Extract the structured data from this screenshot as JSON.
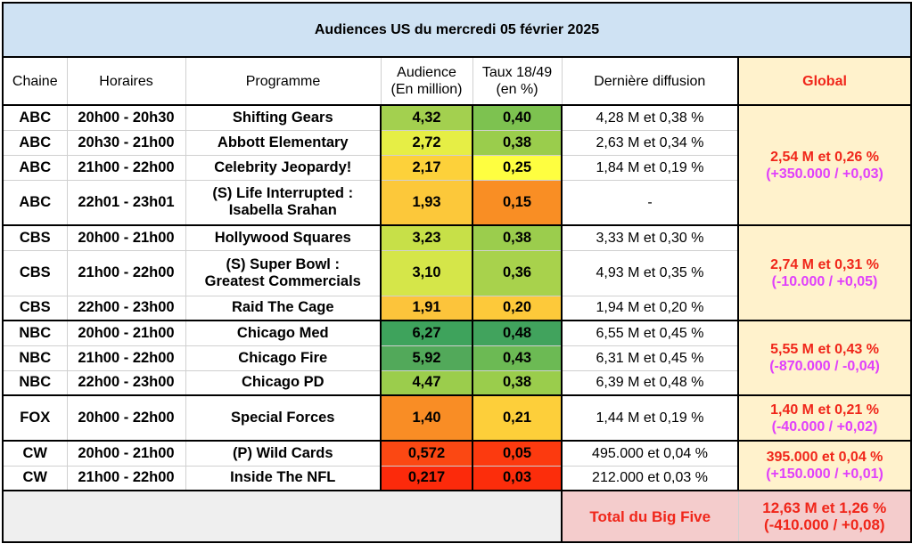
{
  "title": "Audiences US du mercredi 05 février 2025",
  "headers": {
    "chaine": "Chaine",
    "horaires": "Horaires",
    "programme": "Programme",
    "audience_l1": "Audience",
    "audience_l2": "(En million)",
    "taux_l1": "Taux 18/49",
    "taux_l2": "(en %)",
    "derniere": "Dernière diffusion",
    "global": "Global"
  },
  "groups": [
    {
      "global_main": "2,54 M et 0,26 %",
      "global_diff": "(+350.000 / +0,03)",
      "rows": [
        {
          "chaine": "ABC",
          "horaires": "20h00 - 20h30",
          "programme": [
            "Shifting Gears"
          ],
          "audience": "4,32",
          "audience_color": "#a3d04f",
          "taux": "0,40",
          "taux_color": "#7dc250",
          "derniere": "4,28 M et 0,38 %",
          "tall": false
        },
        {
          "chaine": "ABC",
          "horaires": "20h30 - 21h00",
          "programme": [
            "Abbott Elementary"
          ],
          "audience": "2,72",
          "audience_color": "#e6ee45",
          "taux": "0,38",
          "taux_color": "#9acd4c",
          "derniere": "2,63 M et 0,34 %",
          "tall": false
        },
        {
          "chaine": "ABC",
          "horaires": "21h00 - 22h00",
          "programme": [
            "Celebrity Jeopardy!"
          ],
          "audience": "2,17",
          "audience_color": "#fdd13a",
          "taux": "0,25",
          "taux_color": "#fefe40",
          "derniere": "1,84 M et 0,19 %",
          "tall": false
        },
        {
          "chaine": "ABC",
          "horaires": "22h01 - 23h01",
          "programme": [
            "(S) Life Interrupted :",
            "Isabella Srahan"
          ],
          "audience": "1,93",
          "audience_color": "#fcc83a",
          "taux": "0,15",
          "taux_color": "#f98e24",
          "derniere": "-",
          "tall": true
        }
      ]
    },
    {
      "global_main": "2,74 M et 0,31 %",
      "global_diff": "(-10.000 / +0,05)",
      "rows": [
        {
          "chaine": "CBS",
          "horaires": "20h00 - 21h00",
          "programme": [
            "Hollywood Squares"
          ],
          "audience": "3,23",
          "audience_color": "#c7e048",
          "taux": "0,38",
          "taux_color": "#9bcd4d",
          "derniere": "3,33 M et 0,30 %",
          "tall": false
        },
        {
          "chaine": "CBS",
          "horaires": "21h00 - 22h00",
          "programme": [
            "(S) Super Bowl :",
            "Greatest Commercials"
          ],
          "audience": "3,10",
          "audience_color": "#d5e649",
          "taux": "0,36",
          "taux_color": "#a8d24c",
          "derniere": "4,93 M et 0,35 %",
          "tall": true
        },
        {
          "chaine": "CBS",
          "horaires": "22h00 - 23h00",
          "programme": [
            "Raid The Cage"
          ],
          "audience": "1,91",
          "audience_color": "#fcc43b",
          "taux": "0,20",
          "taux_color": "#fdc93a",
          "derniere": "1,94 M et 0,20 %",
          "tall": false
        }
      ]
    },
    {
      "global_main": "5,55 M et 0,43 %",
      "global_diff": "(-870.000 / -0,04)",
      "rows": [
        {
          "chaine": "NBC",
          "horaires": "20h00 - 21h00",
          "programme": [
            "Chicago Med"
          ],
          "audience": "6,27",
          "audience_color": "#3ea35c",
          "taux": "0,48",
          "taux_color": "#41a35d",
          "derniere": "6,55 M et 0,45 %",
          "tall": false
        },
        {
          "chaine": "NBC",
          "horaires": "21h00 - 22h00",
          "programme": [
            "Chicago Fire"
          ],
          "audience": "5,92",
          "audience_color": "#52a95a",
          "taux": "0,43",
          "taux_color": "#6cba54",
          "derniere": "6,31 M et 0,45 %",
          "tall": false
        },
        {
          "chaine": "NBC",
          "horaires": "22h00 - 23h00",
          "programme": [
            "Chicago PD"
          ],
          "audience": "4,47",
          "audience_color": "#9bcd4c",
          "taux": "0,38",
          "taux_color": "#9acd4c",
          "derniere": "6,39 M et 0,48 %",
          "tall": false
        }
      ]
    },
    {
      "global_main": "1,40 M et 0,21 %",
      "global_diff": "(-40.000 / +0,02)",
      "rows": [
        {
          "chaine": "FOX",
          "horaires": "20h00 - 22h00",
          "programme": [
            "Special Forces"
          ],
          "audience": "1,40",
          "audience_color": "#f98d25",
          "taux": "0,21",
          "taux_color": "#fdcf3a",
          "derniere": "1,44 M et 0,19 %",
          "tall": true
        }
      ]
    },
    {
      "global_main": "395.000 et 0,04 %",
      "global_diff": "(+150.000 / +0,01)",
      "rows": [
        {
          "chaine": "CW",
          "horaires": "20h00 - 21h00",
          "programme": [
            "(P) Wild Cards"
          ],
          "audience": "0,572",
          "audience_color": "#fb4813",
          "taux": "0,05",
          "taux_color": "#fc3a0f",
          "derniere": "495.000 et 0,04 %",
          "tall": false
        },
        {
          "chaine": "CW",
          "horaires": "21h00 - 22h00",
          "programme": [
            "Inside The NFL"
          ],
          "audience": "0,217",
          "audience_color": "#fc2a0b",
          "taux": "0,03",
          "taux_color": "#fc2d0b",
          "derniere": "212.000 et 0,03 %",
          "tall": false
        }
      ]
    }
  ],
  "total": {
    "label": "Total du Big Five",
    "main": "12,63 M et 1,26 %",
    "diff": "(-410.000 / +0,08)"
  }
}
